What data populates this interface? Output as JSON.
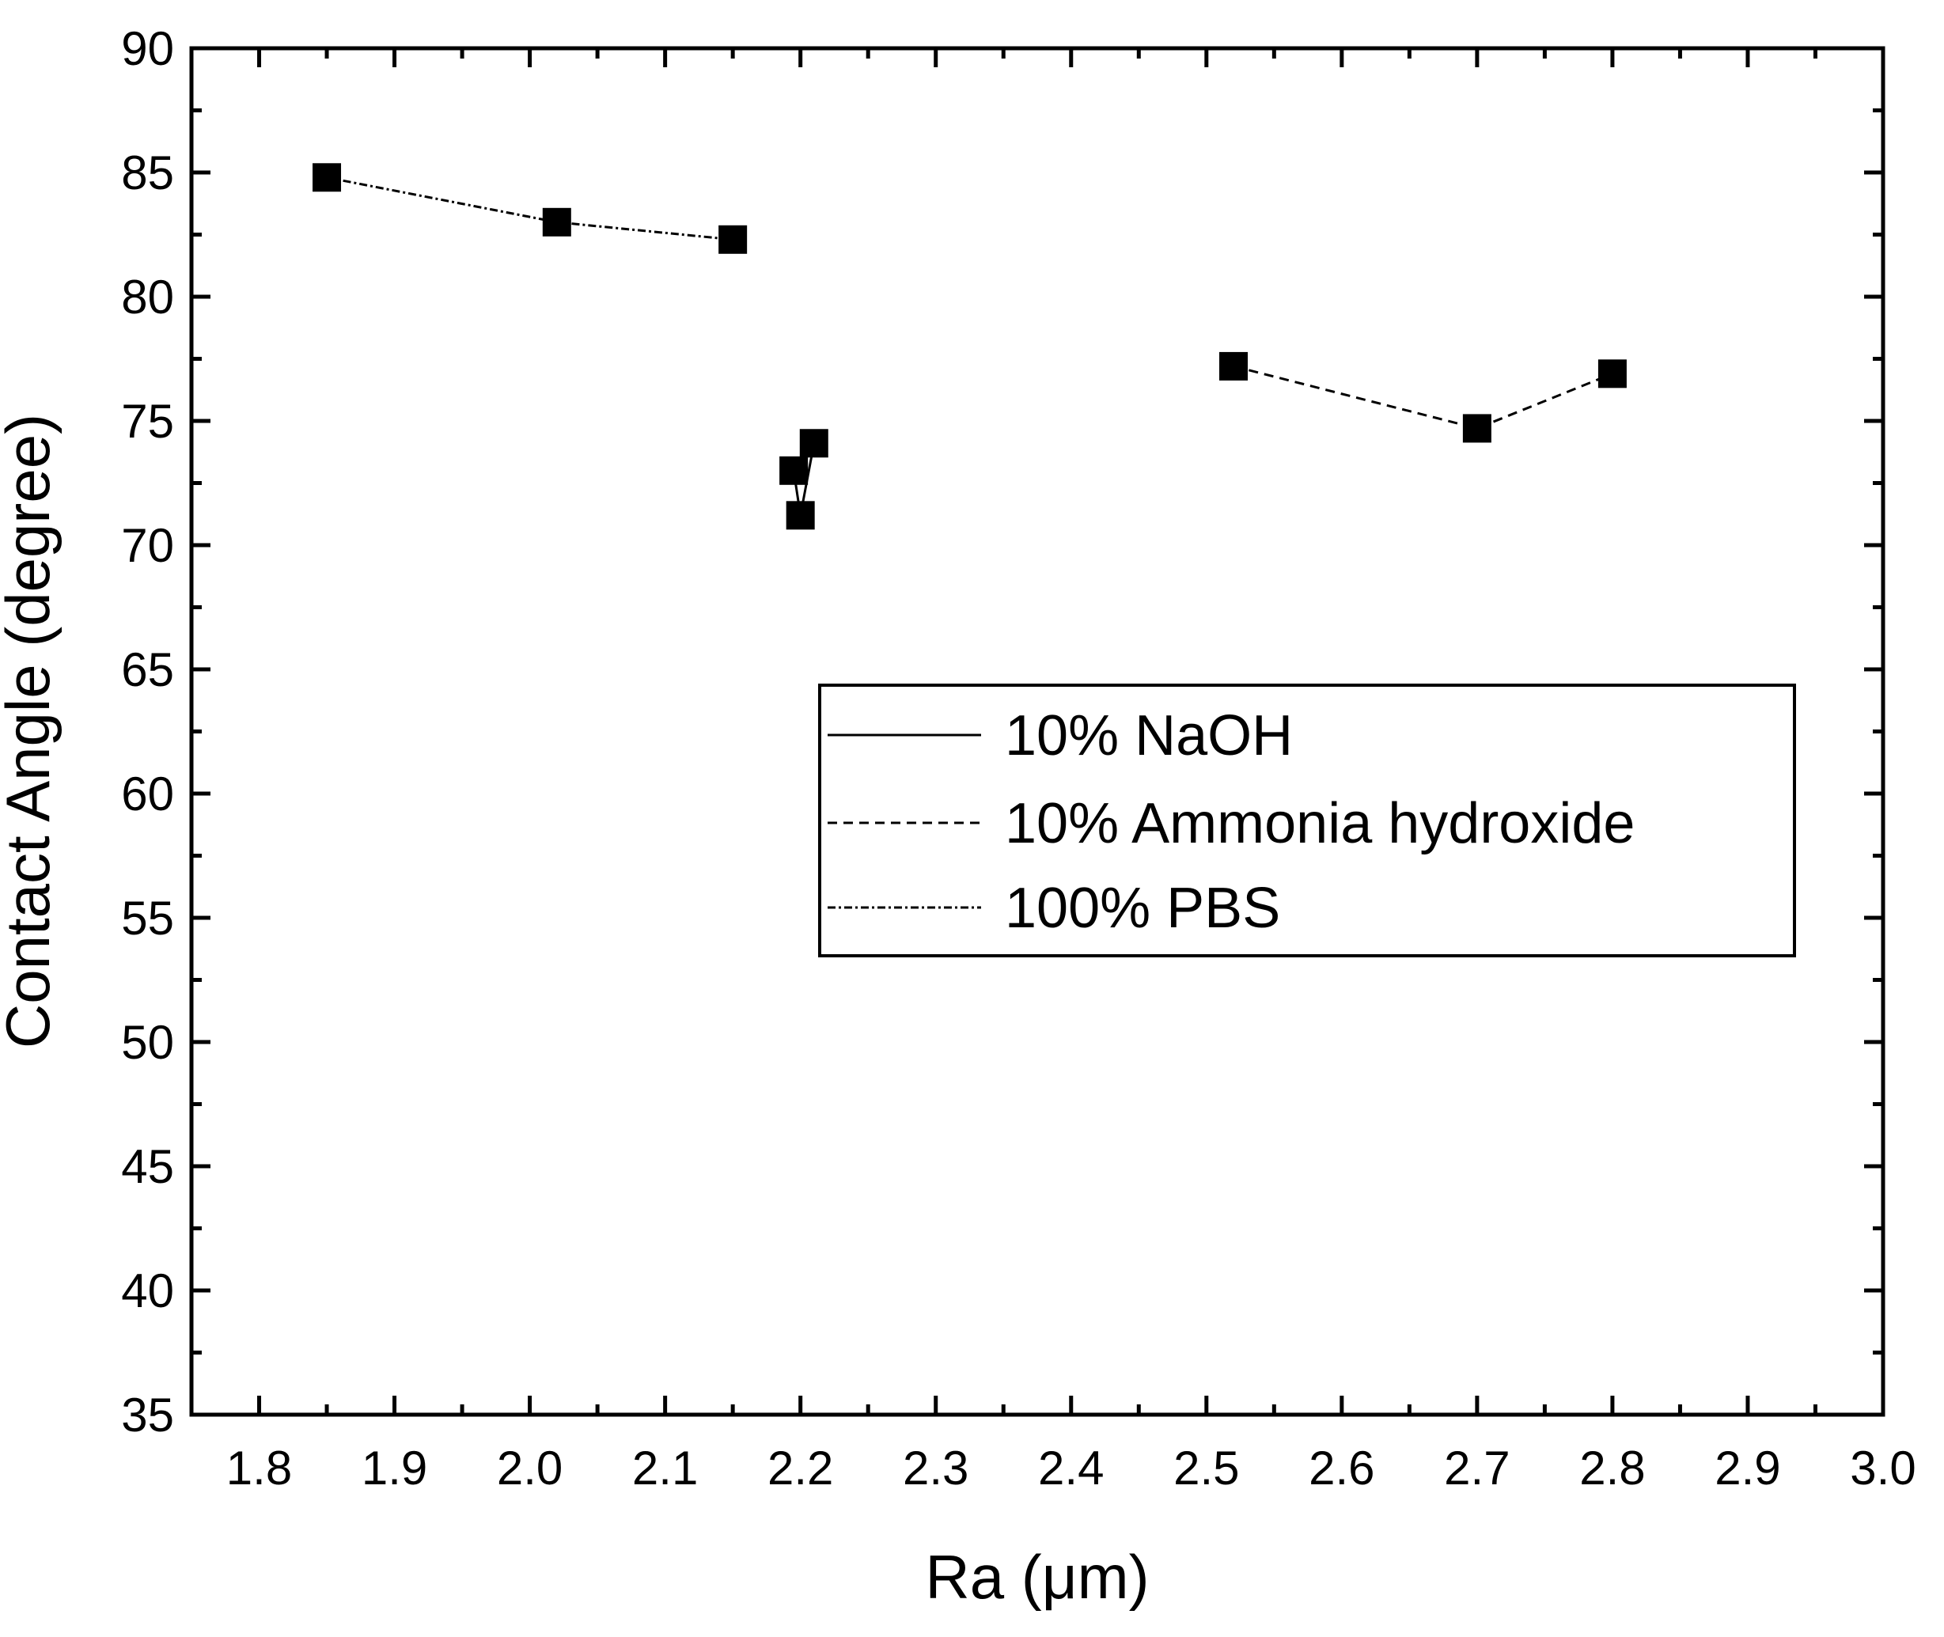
{
  "chart_data": {
    "type": "line",
    "title": "",
    "xlabel": "Ra (μm)",
    "ylabel": "Contact Angle (degree)",
    "xlim": [
      1.75,
      3.0
    ],
    "ylim": [
      35,
      90
    ],
    "x_ticks": [
      1.8,
      1.9,
      2.0,
      2.1,
      2.2,
      2.3,
      2.4,
      2.5,
      2.6,
      2.7,
      2.8,
      2.9,
      3.0
    ],
    "x_tick_labels": [
      "1.8",
      "1.9",
      "2.0",
      "2.1",
      "2.2",
      "2.3",
      "2.4",
      "2.5",
      "2.6",
      "2.7",
      "2.8",
      "2.9",
      "3.0"
    ],
    "y_ticks": [
      35,
      40,
      45,
      50,
      55,
      60,
      65,
      70,
      75,
      80,
      85,
      90
    ],
    "y_tick_labels": [
      "35",
      "40",
      "45",
      "50",
      "55",
      "60",
      "65",
      "70",
      "75",
      "80",
      "85",
      "90"
    ],
    "grid": false,
    "legend_position": "center-right",
    "marker": "square",
    "series": [
      {
        "name": "10% NaOH",
        "line_style": "solid",
        "x": [
          2.195,
          2.2,
          2.21
        ],
        "y": [
          73.0,
          71.2,
          74.1
        ]
      },
      {
        "name": "10% Ammonia hydroxide",
        "line_style": "dashed",
        "x": [
          2.52,
          2.7,
          2.8
        ],
        "y": [
          77.2,
          74.7,
          76.9
        ]
      },
      {
        "name": "100% PBS",
        "line_style": "dash-dot",
        "x": [
          1.85,
          2.02,
          2.15
        ],
        "y": [
          84.8,
          83.0,
          82.3
        ]
      }
    ],
    "colors": {
      "axis": "#000000",
      "line": "#000000",
      "marker": "#000000",
      "background": "#ffffff"
    }
  }
}
